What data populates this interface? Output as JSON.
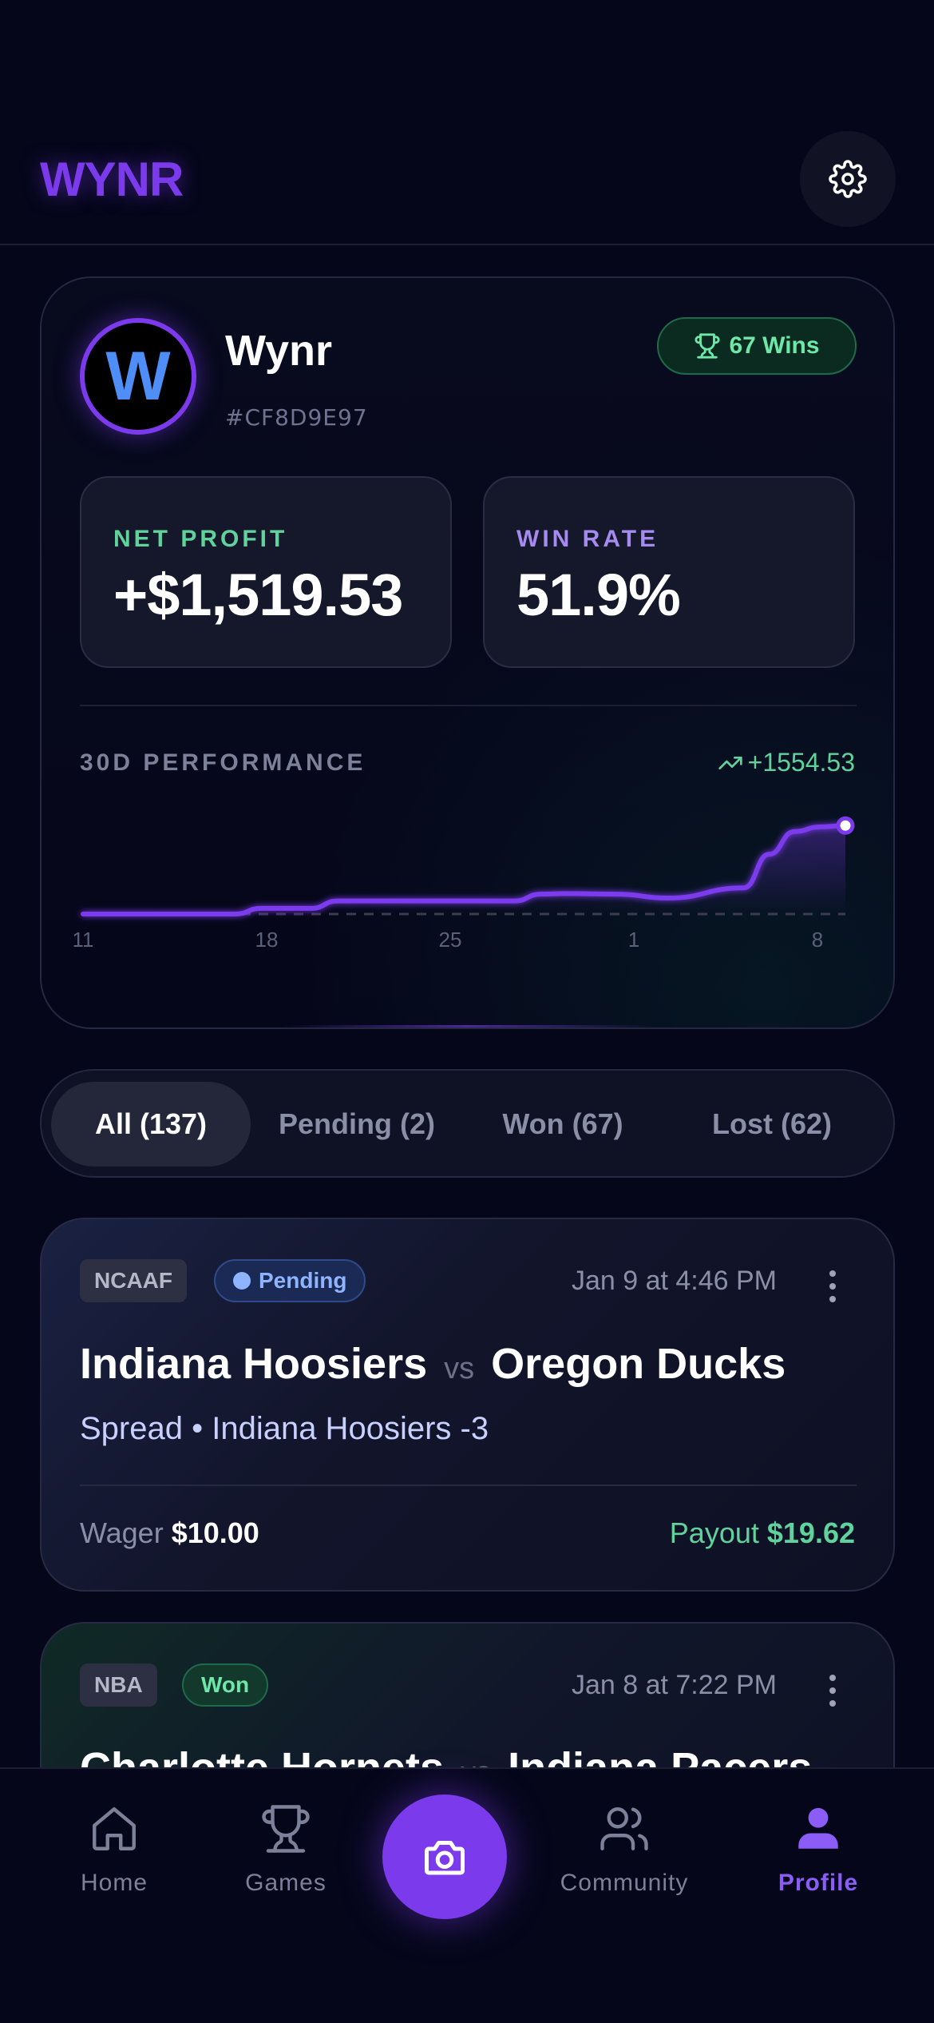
{
  "app": {
    "logo": "WYNR"
  },
  "profile": {
    "avatar_letter": "W",
    "name": "Wynr",
    "code": "#CF8D9E97",
    "wins_badge": "67 Wins",
    "net_profit_label": "NET PROFIT",
    "net_profit_value": "+$1,519.53",
    "win_rate_label": "WIN RATE",
    "win_rate_value": "51.9%",
    "performance_label": "30D PERFORMANCE",
    "performance_delta": "+1554.53"
  },
  "chart_data": {
    "type": "line",
    "title": "30D PERFORMANCE",
    "x_tick_labels": [
      "11",
      "18",
      "25",
      "1",
      "8"
    ],
    "x": [
      0,
      3,
      6,
      7,
      9,
      10,
      13,
      17,
      18,
      19,
      21,
      23,
      26,
      27,
      28,
      29,
      30
    ],
    "values": [
      0,
      0,
      0,
      100,
      100,
      230,
      230,
      230,
      350,
      360,
      350,
      280,
      460,
      1050,
      1450,
      1530,
      1554.53
    ],
    "ylim": [
      0,
      1600
    ],
    "baseline": 0,
    "grid": false,
    "colors": {
      "line": "#7c3aed",
      "baseline": "#3a3d52"
    }
  },
  "filters": [
    {
      "label": "All (137)",
      "active": true
    },
    {
      "label": "Pending (2)",
      "active": false
    },
    {
      "label": "Won (67)",
      "active": false
    },
    {
      "label": "Lost (62)",
      "active": false
    }
  ],
  "bets": [
    {
      "league": "NCAAF",
      "status": "Pending",
      "date": "Jan 9 at 4:46 PM",
      "team1": "Indiana Hoosiers",
      "vs": "vs",
      "team2": "Oregon Ducks",
      "detail": "Spread • Indiana Hoosiers -3",
      "wager_label": "Wager",
      "wager_value": "$10.00",
      "payout_label": "Payout",
      "payout_value": "$19.62"
    },
    {
      "league": "NBA",
      "status": "Won",
      "date": "Jan 8 at 7:22 PM",
      "team1": "Charlotte Hornets",
      "vs": "vs",
      "team2": "Indiana Pacers"
    }
  ],
  "nav": {
    "home": "Home",
    "games": "Games",
    "community": "Community",
    "profile": "Profile",
    "active": "profile"
  },
  "colors": {
    "accent": "#7c3aed",
    "positive": "#5fd39b",
    "pending": "#8fb4ff",
    "background": "#05061a"
  }
}
